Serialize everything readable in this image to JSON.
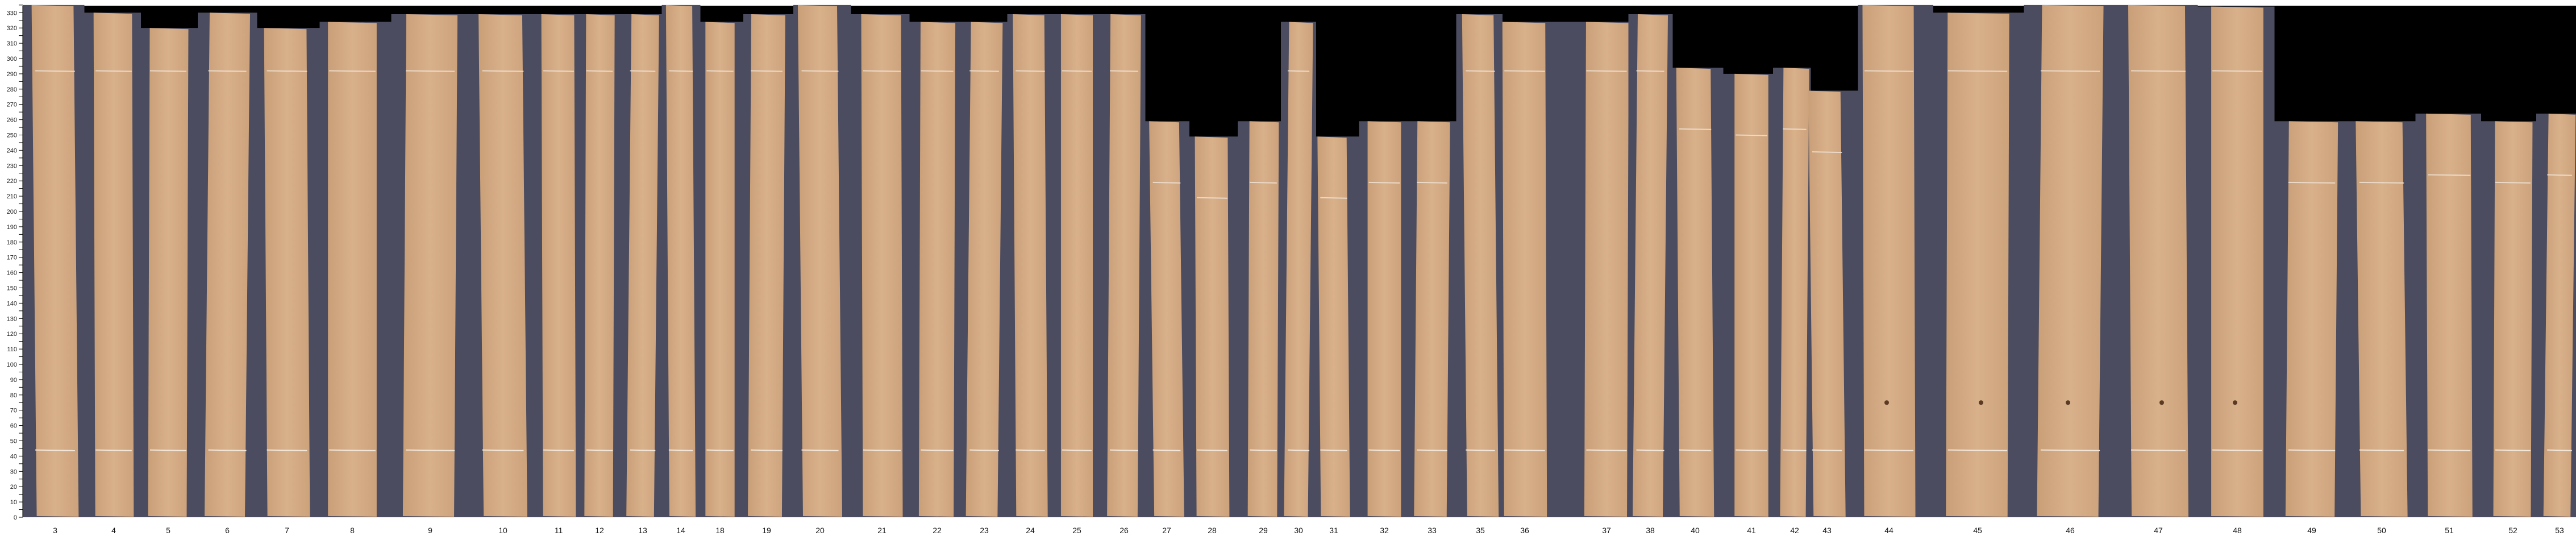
{
  "chart_data": {
    "type": "bar",
    "title": "",
    "xlabel": "",
    "ylabel": "",
    "ylim": [
      0,
      335
    ],
    "y_ticks": [
      0,
      10,
      20,
      30,
      40,
      50,
      60,
      70,
      80,
      90,
      100,
      110,
      120,
      130,
      140,
      150,
      160,
      170,
      180,
      190,
      200,
      210,
      220,
      230,
      240,
      250,
      260,
      270,
      280,
      290,
      300,
      310,
      320,
      330
    ],
    "y_minor_tick_step": 5,
    "grid": false,
    "categories": [
      "3",
      "4",
      "5",
      "6",
      "7",
      "8",
      "9",
      "10",
      "11",
      "12",
      "13",
      "14",
      "18",
      "19",
      "20",
      "21",
      "22",
      "23",
      "24",
      "25",
      "26",
      "27",
      "28",
      "29",
      "30",
      "31",
      "32",
      "33",
      "35",
      "36",
      "37",
      "38",
      "40",
      "41",
      "42",
      "43",
      "44",
      "45",
      "46",
      "47",
      "48",
      "49",
      "50",
      "51",
      "52",
      "53"
    ],
    "values": [
      335,
      330,
      320,
      330,
      320,
      324,
      329,
      329,
      329,
      329,
      329,
      335,
      324,
      329,
      335,
      329,
      324,
      324,
      329,
      329,
      329,
      259,
      249,
      259,
      324,
      249,
      259,
      259,
      329,
      324,
      324,
      329,
      294,
      290,
      294,
      279,
      335,
      330,
      335,
      335,
      334,
      259,
      259,
      264,
      259,
      264
    ],
    "cut_marks_lower": 44,
    "colors": {
      "board": "#d2a982",
      "background_panel": "#4b4c5f",
      "empty": "#000000",
      "cut_mark": "#f2e6da",
      "axis": "#000000"
    }
  }
}
